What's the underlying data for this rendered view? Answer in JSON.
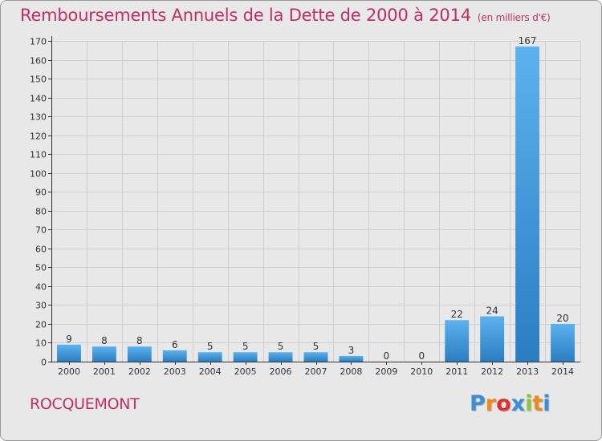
{
  "title": "Remboursements Annuels de la Dette de 2000 à 2014",
  "subtitle": "(en milliers d'€)",
  "town": "ROCQUEMONT",
  "logo": {
    "letters": [
      "P",
      "r",
      "o",
      "x",
      "i",
      "t",
      "i"
    ],
    "colors": [
      "#3a8fd6",
      "#f08a1a",
      "#e0302a",
      "#3a8fd6",
      "#8cc63f",
      "#f08a1a",
      "#3a8fd6"
    ]
  },
  "colors": {
    "bar": "#3f97da",
    "bar_light": "#5bb0ec",
    "bar_dark": "#2a7bbf",
    "grid": "#cfcfcf",
    "axis": "#333333",
    "text": "#333333"
  },
  "chart_data": {
    "type": "bar",
    "categories": [
      "2000",
      "2001",
      "2002",
      "2003",
      "2004",
      "2005",
      "2006",
      "2007",
      "2008",
      "2009",
      "2010",
      "2011",
      "2012",
      "2013",
      "2014"
    ],
    "values": [
      9,
      8,
      8,
      6,
      5,
      5,
      5,
      5,
      3,
      0,
      0,
      22,
      24,
      167,
      20
    ],
    "ylim": [
      0,
      170
    ],
    "yticks": [
      0,
      10,
      20,
      30,
      40,
      50,
      60,
      70,
      80,
      90,
      100,
      110,
      120,
      130,
      140,
      150,
      160,
      170
    ],
    "grid": true,
    "legend": "none"
  }
}
